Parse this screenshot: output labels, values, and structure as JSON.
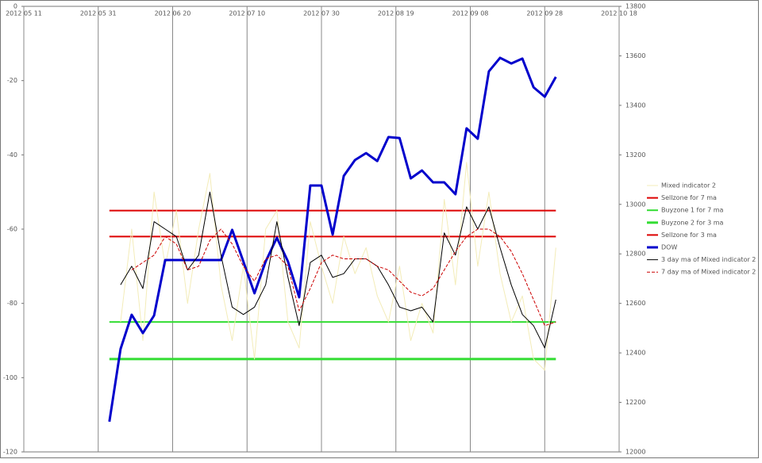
{
  "chart_data": {
    "type": "line",
    "x": [
      "2012-06-03",
      "2012-06-06",
      "2012-06-09",
      "2012-06-12",
      "2012-06-15",
      "2012-06-18",
      "2012-06-21",
      "2012-06-24",
      "2012-06-27",
      "2012-06-30",
      "2012-07-03",
      "2012-07-06",
      "2012-07-09",
      "2012-07-12",
      "2012-07-15",
      "2012-07-18",
      "2012-07-21",
      "2012-07-24",
      "2012-07-27",
      "2012-07-30",
      "2012-08-02",
      "2012-08-05",
      "2012-08-08",
      "2012-08-11",
      "2012-08-14",
      "2012-08-17",
      "2012-08-20",
      "2012-08-23",
      "2012-08-26",
      "2012-08-29",
      "2012-09-01",
      "2012-09-04",
      "2012-09-07",
      "2012-09-10",
      "2012-09-13",
      "2012-09-16",
      "2012-09-19",
      "2012-09-22",
      "2012-09-25",
      "2012-09-28",
      "2012-10-01"
    ],
    "xlim": [
      "2012-05-11",
      "2012-10-18"
    ],
    "xticks": [
      {
        "value": "2012-05-11",
        "label": "2012 05 11"
      },
      {
        "value": "2012-05-31",
        "label": "2012 05 31"
      },
      {
        "value": "2012-06-20",
        "label": "2012 06 20"
      },
      {
        "value": "2012-07-10",
        "label": "2012 07 10"
      },
      {
        "value": "2012-07-30",
        "label": "2012 07 30"
      },
      {
        "value": "2012-08-19",
        "label": "2012 08 19"
      },
      {
        "value": "2012-09-08",
        "label": "2012 09 08"
      },
      {
        "value": "2012-09-28",
        "label": "2012 09 28"
      },
      {
        "value": "2012-10-18",
        "label": "2012 10 18"
      }
    ],
    "ylim": [
      0,
      -120
    ],
    "yticks": [
      0,
      -20,
      -40,
      -60,
      -80,
      -100,
      -120
    ],
    "y2lim": [
      13800,
      12000
    ],
    "y2ticks": [
      13800,
      13600,
      13400,
      13200,
      13000,
      12800,
      12600,
      12400,
      12200,
      12000
    ],
    "grid": true,
    "legend": "right",
    "series": [
      {
        "name": "Mixed indicator 2",
        "color": "#f3ecb8",
        "width": 1,
        "values": [
          null,
          -85,
          -60,
          -90,
          -50,
          -70,
          -55,
          -80,
          -60,
          -45,
          -75,
          -90,
          -70,
          -95,
          -60,
          -55,
          -85,
          -92,
          -58,
          -70,
          -80,
          -62,
          -72,
          -65,
          -78,
          -85,
          -70,
          -90,
          -80,
          -88,
          -52,
          -75,
          -42,
          -70,
          -50,
          -72,
          -85,
          -78,
          -95,
          -98,
          -65
        ]
      },
      {
        "name": "Sellzone for 7 ma",
        "color": "#dd0000",
        "width": 2,
        "value": -55
      },
      {
        "name": "Buyzone 1 for 7 ma",
        "color": "#33dd33",
        "width": 2,
        "value": -85
      },
      {
        "name": "Buyzone 2 for 3 ma",
        "color": "#33dd33",
        "width": 3,
        "value": -95
      },
      {
        "name": "Sellzone for 3 ma",
        "color": "#dd0000",
        "width": 2,
        "value": -62
      },
      {
        "name": "DOW",
        "color": "#0000cc",
        "width": 3,
        "axis": "y2",
        "values": [
          12122,
          12416,
          12554,
          12480,
          12551,
          12775,
          12775,
          12775,
          12775,
          12775,
          12775,
          12897,
          12769,
          12641,
          12769,
          12865,
          12769,
          12625,
          13076,
          13076,
          12878,
          13115,
          13179,
          13207,
          13175,
          13272,
          13268,
          13105,
          13137,
          13089,
          13089,
          13041,
          13307,
          13265,
          13537,
          13592,
          13569,
          13589,
          13473,
          13435,
          13515
        ]
      },
      {
        "name": "3 day ma of Mixed indicator 2",
        "color": "#000000",
        "width": 1,
        "values": [
          null,
          -75,
          -70,
          -76,
          -58,
          -60,
          -62,
          -71,
          -67,
          -50,
          -67,
          -81,
          -83,
          -81,
          -75,
          -58,
          -73,
          -86,
          -69,
          -67,
          -73,
          -72,
          -68,
          -68,
          -70,
          -75,
          -81,
          -82,
          -81,
          -85,
          -61,
          -67,
          -54,
          -60,
          -54,
          -65,
          -75,
          -83,
          -86,
          -92,
          -79
        ]
      },
      {
        "name": "7 day ma of Mixed indicator 2",
        "color": "#cc0000",
        "width": 1,
        "dash": true,
        "values": [
          null,
          null,
          -71,
          -69,
          -67,
          -62,
          -64,
          -71,
          -70,
          -63,
          -60,
          -64,
          -70,
          -74,
          -68,
          -67,
          -70,
          -82,
          -76,
          -69,
          -67,
          -68,
          -68,
          -68,
          -70,
          -71,
          -74,
          -77,
          -78,
          -76,
          -71,
          -66,
          -62,
          -60,
          -60,
          -62,
          -66,
          -72,
          -79,
          -86,
          -85
        ]
      }
    ]
  }
}
